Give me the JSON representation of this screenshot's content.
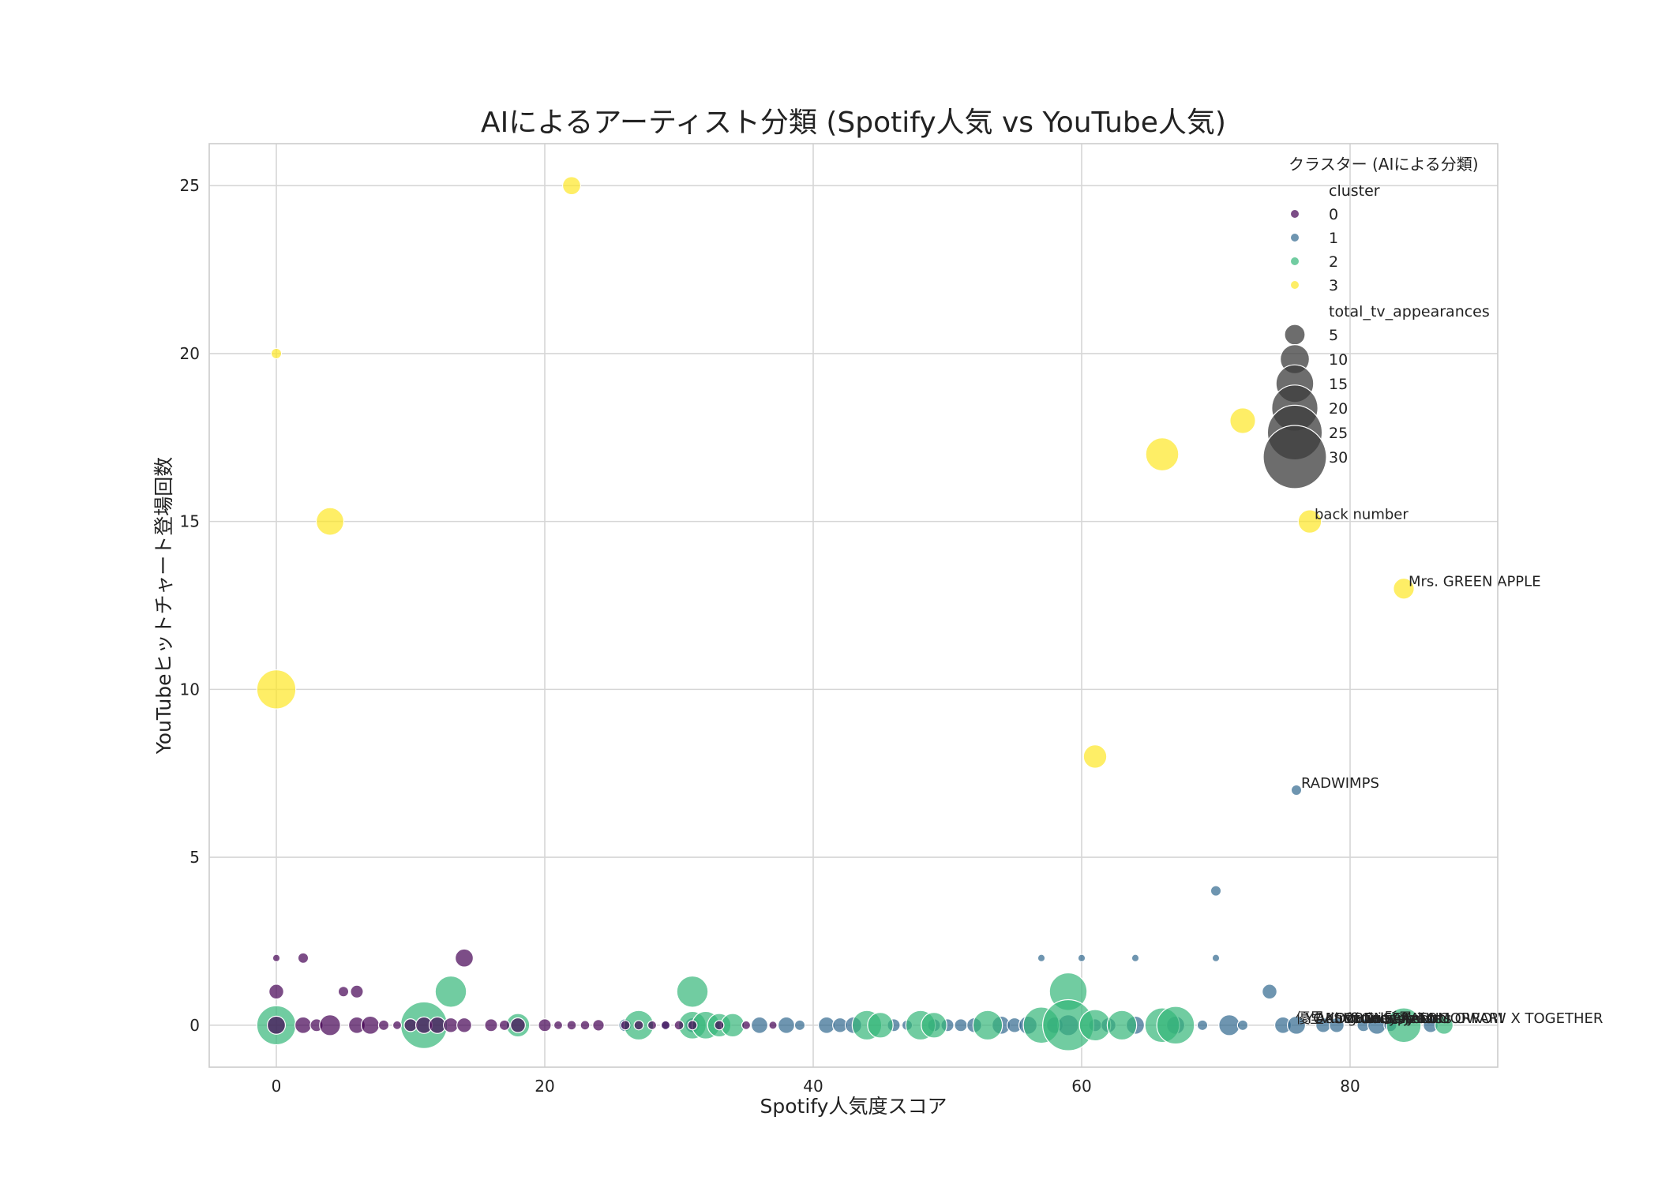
{
  "chart_data": {
    "type": "scatter",
    "title": "AIによるアーティスト分類 (Spotify人気 vs YouTube人気)",
    "xlabel": "Spotify人気度スコア",
    "ylabel": "YouTubeヒットチャート登場回数",
    "xlim": [
      -5,
      91
    ],
    "ylim": [
      -1.25,
      26.25
    ],
    "xticks": [
      0,
      20,
      40,
      60,
      80
    ],
    "yticks": [
      0,
      5,
      10,
      15,
      20,
      25
    ],
    "grid": true,
    "legend": {
      "title": "クラスター (AIによる分類)",
      "placement": "top-right",
      "hue_title": "cluster",
      "hue_labels": [
        "0",
        "1",
        "2",
        "3"
      ],
      "size_title": "total_tv_appearances",
      "size_labels": [
        "5",
        "10",
        "15",
        "20",
        "25",
        "30"
      ],
      "size_values": [
        5,
        10,
        15,
        20,
        25,
        30
      ]
    },
    "colors": {
      "0": "#440154",
      "1": "#31688e",
      "2": "#35b779",
      "3": "#fde725"
    },
    "series": [
      {
        "name": "3",
        "points": [
          {
            "x": 22,
            "y": 25,
            "size": 3
          },
          {
            "x": 0,
            "y": 20,
            "size": 1
          },
          {
            "x": 4,
            "y": 15,
            "size": 7
          },
          {
            "x": 0,
            "y": 10,
            "size": 14
          },
          {
            "x": 66,
            "y": 17,
            "size": 10
          },
          {
            "x": 72,
            "y": 18,
            "size": 6
          },
          {
            "x": 77,
            "y": 15,
            "size": 5
          },
          {
            "x": 84,
            "y": 13,
            "size": 4
          },
          {
            "x": 61,
            "y": 8,
            "size": 5
          }
        ]
      },
      {
        "name": "1",
        "points": [
          {
            "x": 76,
            "y": 7,
            "size": 1
          },
          {
            "x": 70,
            "y": 4,
            "size": 1
          },
          {
            "x": 57,
            "y": 2,
            "size": 0.5
          },
          {
            "x": 60,
            "y": 2,
            "size": 0.5
          },
          {
            "x": 64,
            "y": 2,
            "size": 0.5
          },
          {
            "x": 70,
            "y": 2,
            "size": 0.5
          },
          {
            "x": 74,
            "y": 1,
            "size": 2
          },
          {
            "x": 26,
            "y": 0,
            "size": 1.5
          },
          {
            "x": 29,
            "y": 0,
            "size": 1
          },
          {
            "x": 31,
            "y": 0,
            "size": 2
          },
          {
            "x": 36,
            "y": 0,
            "size": 2.5
          },
          {
            "x": 38,
            "y": 0,
            "size": 2.5
          },
          {
            "x": 39,
            "y": 0,
            "size": 1
          },
          {
            "x": 41,
            "y": 0,
            "size": 2.5
          },
          {
            "x": 42,
            "y": 0,
            "size": 2
          },
          {
            "x": 43,
            "y": 0,
            "size": 2.5
          },
          {
            "x": 46,
            "y": 0,
            "size": 1.5
          },
          {
            "x": 47,
            "y": 0,
            "size": 1
          },
          {
            "x": 49,
            "y": 0,
            "size": 1.5
          },
          {
            "x": 50,
            "y": 0,
            "size": 1.5
          },
          {
            "x": 51,
            "y": 0,
            "size": 1.5
          },
          {
            "x": 52,
            "y": 0,
            "size": 2
          },
          {
            "x": 54,
            "y": 0,
            "size": 3
          },
          {
            "x": 55,
            "y": 0,
            "size": 2
          },
          {
            "x": 56,
            "y": 0,
            "size": 3
          },
          {
            "x": 58,
            "y": 0,
            "size": 2.5
          },
          {
            "x": 59,
            "y": 0,
            "size": 4
          },
          {
            "x": 61,
            "y": 0,
            "size": 1.5
          },
          {
            "x": 62,
            "y": 0,
            "size": 2
          },
          {
            "x": 64,
            "y": 0,
            "size": 3
          },
          {
            "x": 67,
            "y": 0,
            "size": 3
          },
          {
            "x": 69,
            "y": 0,
            "size": 1
          },
          {
            "x": 71,
            "y": 0,
            "size": 4
          },
          {
            "x": 72,
            "y": 0,
            "size": 1
          },
          {
            "x": 75,
            "y": 0,
            "size": 2.5
          },
          {
            "x": 76,
            "y": 0,
            "size": 3
          },
          {
            "x": 78,
            "y": 0,
            "size": 2
          },
          {
            "x": 79,
            "y": 0,
            "size": 2
          },
          {
            "x": 81,
            "y": 0,
            "size": 1.5
          },
          {
            "x": 82,
            "y": 0,
            "size": 3
          },
          {
            "x": 83,
            "y": 0,
            "size": 1.5
          },
          {
            "x": 86,
            "y": 0,
            "size": 2
          }
        ]
      },
      {
        "name": "2",
        "points": [
          {
            "x": 0,
            "y": 0,
            "size": 14
          },
          {
            "x": 11,
            "y": 0,
            "size": 20
          },
          {
            "x": 13,
            "y": 1,
            "size": 9
          },
          {
            "x": 18,
            "y": 0,
            "size": 5
          },
          {
            "x": 27,
            "y": 0,
            "size": 8
          },
          {
            "x": 31,
            "y": 1,
            "size": 9
          },
          {
            "x": 31,
            "y": 0,
            "size": 7
          },
          {
            "x": 32,
            "y": 0,
            "size": 7
          },
          {
            "x": 33,
            "y": 0,
            "size": 5
          },
          {
            "x": 34,
            "y": 0,
            "size": 5
          },
          {
            "x": 44,
            "y": 0,
            "size": 8
          },
          {
            "x": 45,
            "y": 0,
            "size": 6
          },
          {
            "x": 48,
            "y": 0,
            "size": 8
          },
          {
            "x": 49,
            "y": 0,
            "size": 6
          },
          {
            "x": 53,
            "y": 0,
            "size": 8
          },
          {
            "x": 57,
            "y": 0,
            "size": 12
          },
          {
            "x": 59,
            "y": 1,
            "size": 13
          },
          {
            "x": 59,
            "y": 0,
            "size": 24
          },
          {
            "x": 61,
            "y": 0,
            "size": 9
          },
          {
            "x": 63,
            "y": 0,
            "size": 8
          },
          {
            "x": 66,
            "y": 0,
            "size": 11
          },
          {
            "x": 67,
            "y": 0,
            "size": 13
          },
          {
            "x": 84,
            "y": 0,
            "size": 11
          },
          {
            "x": 87,
            "y": 0,
            "size": 3
          }
        ]
      },
      {
        "name": "0",
        "points": [
          {
            "x": 0,
            "y": 2,
            "size": 0.5
          },
          {
            "x": 2,
            "y": 2,
            "size": 1
          },
          {
            "x": 14,
            "y": 2,
            "size": 3
          },
          {
            "x": 0,
            "y": 1,
            "size": 2
          },
          {
            "x": 5,
            "y": 1,
            "size": 1
          },
          {
            "x": 6,
            "y": 1,
            "size": 1.5
          },
          {
            "x": 0,
            "y": 0,
            "size": 3
          },
          {
            "x": 2,
            "y": 0,
            "size": 2.5
          },
          {
            "x": 3,
            "y": 0,
            "size": 1.5
          },
          {
            "x": 4,
            "y": 0,
            "size": 4
          },
          {
            "x": 6,
            "y": 0,
            "size": 2.5
          },
          {
            "x": 7,
            "y": 0,
            "size": 3
          },
          {
            "x": 8,
            "y": 0,
            "size": 1
          },
          {
            "x": 9,
            "y": 0,
            "size": 0.7
          },
          {
            "x": 10,
            "y": 0,
            "size": 1.5
          },
          {
            "x": 11,
            "y": 0,
            "size": 2.5
          },
          {
            "x": 12,
            "y": 0,
            "size": 2.5
          },
          {
            "x": 13,
            "y": 0,
            "size": 2
          },
          {
            "x": 14,
            "y": 0,
            "size": 2
          },
          {
            "x": 16,
            "y": 0,
            "size": 1.5
          },
          {
            "x": 17,
            "y": 0,
            "size": 1
          },
          {
            "x": 18,
            "y": 0,
            "size": 2
          },
          {
            "x": 20,
            "y": 0,
            "size": 1.5
          },
          {
            "x": 21,
            "y": 0,
            "size": 0.7
          },
          {
            "x": 22,
            "y": 0,
            "size": 0.8
          },
          {
            "x": 23,
            "y": 0,
            "size": 0.8
          },
          {
            "x": 24,
            "y": 0,
            "size": 1.2
          },
          {
            "x": 26,
            "y": 0,
            "size": 0.8
          },
          {
            "x": 27,
            "y": 0,
            "size": 0.8
          },
          {
            "x": 28,
            "y": 0,
            "size": 0.7
          },
          {
            "x": 29,
            "y": 0,
            "size": 0.7
          },
          {
            "x": 30,
            "y": 0,
            "size": 0.8
          },
          {
            "x": 31,
            "y": 0,
            "size": 0.8
          },
          {
            "x": 33,
            "y": 0,
            "size": 0.8
          },
          {
            "x": 35,
            "y": 0,
            "size": 0.7
          },
          {
            "x": 37,
            "y": 0,
            "size": 0.6
          }
        ]
      }
    ],
    "annotations": [
      {
        "text": "back number",
        "x": 77,
        "y": 15
      },
      {
        "text": "Mrs. GREEN APPLE",
        "x": 84,
        "y": 13
      },
      {
        "text": "RADWIMPS",
        "x": 76,
        "y": 7
      },
      {
        "text": "優里",
        "x": 75.6,
        "y": 0
      },
      {
        "text": "YOASOBI",
        "x": 76.3,
        "y": 0
      },
      {
        "text": "Ado",
        "x": 77.1,
        "y": 0
      },
      {
        "text": "King Gnu",
        "x": 77.8,
        "y": 0
      },
      {
        "text": "Official髭男dism",
        "x": 78.5,
        "y": 0
      },
      {
        "text": "Vaundy",
        "x": 79.2,
        "y": 0
      },
      {
        "text": "tuki.",
        "x": 80.0,
        "y": 0
      },
      {
        "text": "Creepy Nuts",
        "x": 80.7,
        "y": 0
      },
      {
        "text": "NewJeans",
        "x": 81.4,
        "y": 0
      },
      {
        "text": "SEKAI NO OWARI",
        "x": 82.1,
        "y": 0
      },
      {
        "text": "Aimer",
        "x": 82.8,
        "y": 0
      },
      {
        "text": "TOMORROW X TOGETHER",
        "x": 84.7,
        "y": 0
      }
    ]
  }
}
